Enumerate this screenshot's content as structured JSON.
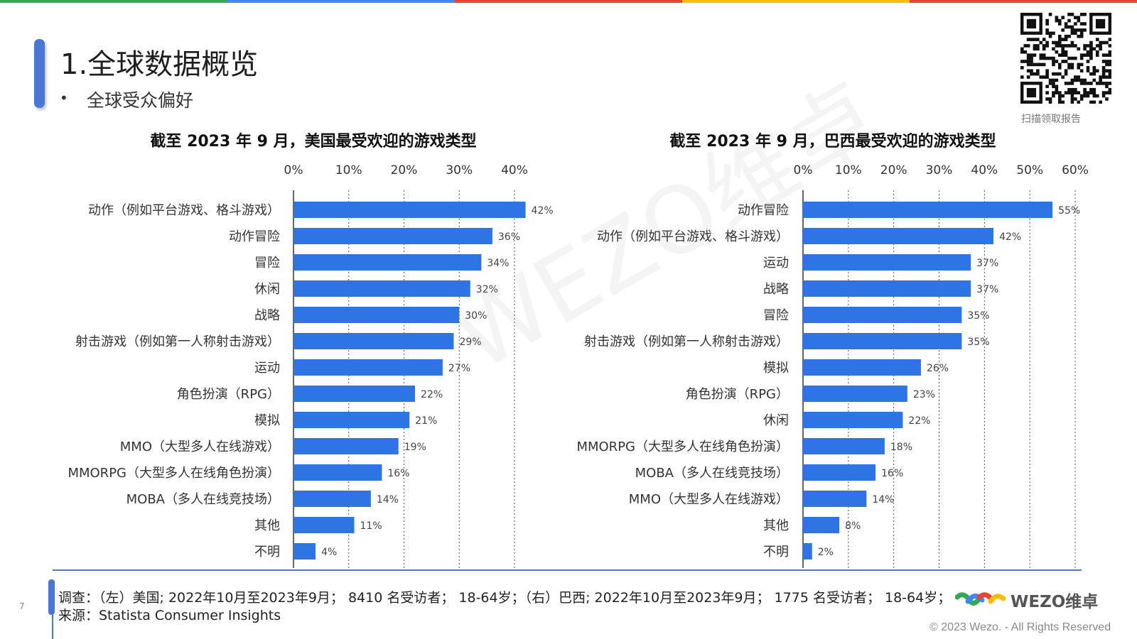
{
  "slide": {
    "title": "1.全球数据概览",
    "subtitle": "全球受众偏好",
    "qr_caption": "扫描领取报告",
    "page_number": "7",
    "watermark": "WEZO维卓"
  },
  "colors": {
    "bar": "#2f74e4",
    "accent": "#4a76d4",
    "top_stripes": [
      "#34a853",
      "#4285f4",
      "#ea4335",
      "#fbbc05",
      "#ea4335"
    ]
  },
  "footer": {
    "survey": "调查：（左）美国; 2022年10月至2023年9月； 8410 名受访者； 18-64岁；（右）巴西; 2022年10月至2023年9月； 1775 名受访者； 18-64岁；",
    "source": "来源：Statista Consumer Insights",
    "brand": "WEZO维卓",
    "copyright": "© 2023 Wezo. - All Rights Reserved"
  },
  "chart_data": [
    {
      "type": "bar",
      "orientation": "horizontal",
      "title": "截至 2023 年 9 月，美国最受欢迎的游戏类型",
      "categories": [
        "动作（例如平台游戏、格斗游戏）",
        "动作冒险",
        "冒险",
        "休闲",
        "战略",
        "射击游戏（例如第一人称射击游戏）",
        "运动",
        "角色扮演（RPG）",
        "模拟",
        "MMO（大型多人在线游戏）",
        "MMORPG（大型多人在线角色扮演）",
        "MOBA（多人在线竞技场）",
        "其他",
        "不明"
      ],
      "values": [
        42,
        36,
        34,
        32,
        30,
        29,
        27,
        22,
        21,
        19,
        16,
        14,
        11,
        4
      ],
      "value_labels": [
        "42%",
        "36%",
        "34%",
        "32%",
        "30%",
        "29%",
        "27%",
        "22%",
        "21%",
        "19%",
        "16%",
        "14%",
        "11%",
        "4%"
      ],
      "xticks": [
        "0%",
        "10%",
        "20%",
        "30%",
        "40%"
      ],
      "xlim": [
        0,
        40
      ],
      "axis_position": "top",
      "grid": "vertical dotted"
    },
    {
      "type": "bar",
      "orientation": "horizontal",
      "title": "截至 2023 年 9 月，巴西最受欢迎的游戏类型",
      "categories": [
        "动作冒险",
        "动作（例如平台游戏、格斗游戏）",
        "运动",
        "战略",
        "冒险",
        "射击游戏（例如第一人称射击游戏）",
        "模拟",
        "角色扮演（RPG）",
        "休闲",
        "MMORPG（大型多人在线角色扮演）",
        "MOBA（多人在线竞技场）",
        "MMO（大型多人在线游戏）",
        "其他",
        "不明"
      ],
      "values": [
        55,
        42,
        37,
        37,
        35,
        35,
        26,
        23,
        22,
        18,
        16,
        14,
        8,
        2
      ],
      "value_labels": [
        "55%",
        "42%",
        "37%",
        "37%",
        "35%",
        "35%",
        "26%",
        "23%",
        "22%",
        "18%",
        "16%",
        "14%",
        "8%",
        "2%"
      ],
      "xticks": [
        "0%",
        "10%",
        "20%",
        "30%",
        "40%",
        "50%",
        "60%"
      ],
      "xlim": [
        0,
        60
      ],
      "axis_position": "top",
      "grid": "vertical dotted"
    }
  ]
}
